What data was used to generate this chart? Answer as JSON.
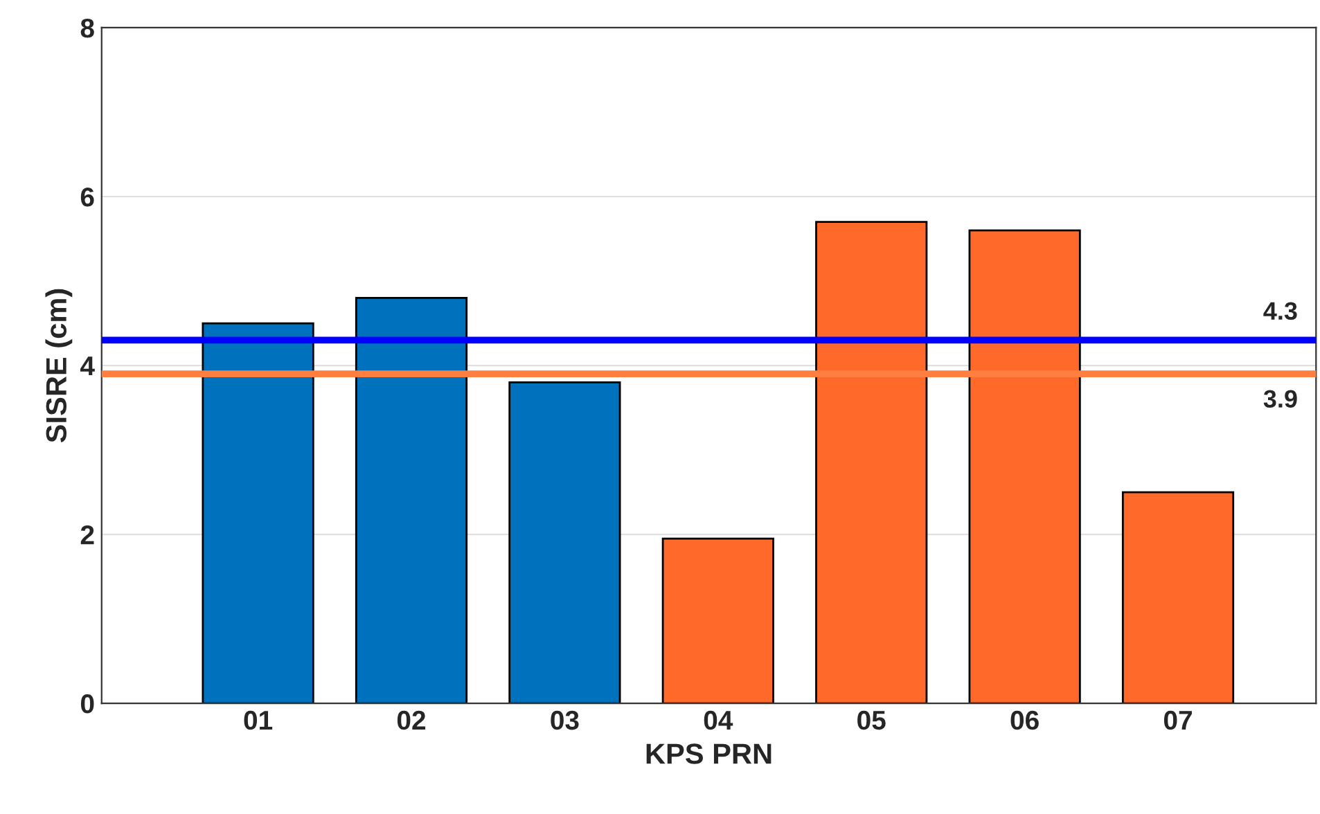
{
  "chart_data": {
    "type": "bar",
    "xlabel": "KPS PRN",
    "ylabel": "SISRE (cm)",
    "categories": [
      "01",
      "02",
      "03",
      "04",
      "05",
      "06",
      "07"
    ],
    "values": [
      4.5,
      4.8,
      3.8,
      1.95,
      5.7,
      5.6,
      2.5
    ],
    "colors": [
      "#0072bd",
      "#0072bd",
      "#0072bd",
      "#ff6929",
      "#ff6929",
      "#ff6929",
      "#ff6929"
    ],
    "ylim": [
      0,
      8
    ],
    "yticks": [
      0,
      2,
      4,
      6,
      8
    ],
    "grid": "y",
    "ref_lines": [
      {
        "axis": "y",
        "value": 4.3,
        "label": "4.3",
        "color": "#0000ff"
      },
      {
        "axis": "y",
        "value": 3.9,
        "label": "3.9",
        "color": "#ff7f40"
      }
    ]
  }
}
